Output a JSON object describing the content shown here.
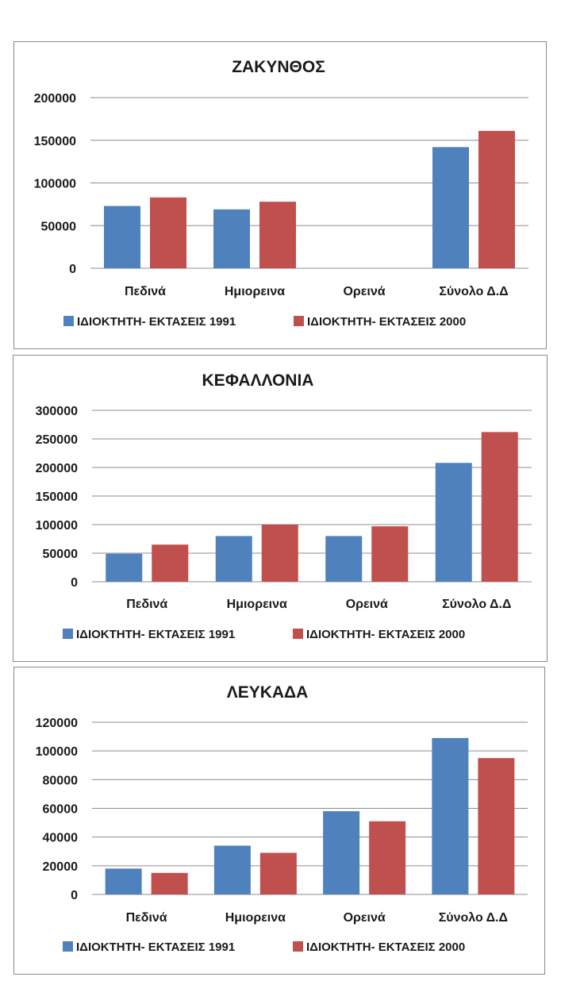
{
  "chart_data": [
    {
      "type": "bar",
      "title": "ΖΑΚΥΝΘΟΣ",
      "categories": [
        "Πεδινά",
        "Ημιορεινα",
        "Ορεινά",
        "Σύνολο Δ.Δ"
      ],
      "series": [
        {
          "name": "ΙΔΙΟΚΤΗΤΗ- ΕΚΤΑΣΕΙΣ 1991",
          "color": "#4f81bd",
          "values": [
            73000,
            69000,
            0,
            142000
          ]
        },
        {
          "name": "ΙΔΙΟΚΤΗΤΗ- ΕΚΤΑΣΕΙΣ 2000",
          "color": "#c0504d",
          "values": [
            83000,
            78000,
            0,
            161000
          ]
        }
      ],
      "yticks": [
        "0",
        "50000",
        "100000",
        "150000",
        "200000"
      ],
      "ylim": [
        0,
        200000
      ],
      "grid": true,
      "legend": "bottom"
    },
    {
      "type": "bar",
      "title": "ΚΕΦΑΛΛΟΝΙΑ",
      "categories": [
        "Πεδινά",
        "Ημιορεινα",
        "Ορεινά",
        "Σύνολο Δ.Δ"
      ],
      "series": [
        {
          "name": "ΙΔΙΟΚΤΗΤΗ- ΕΚΤΑΣΕΙΣ 1991",
          "color": "#4f81bd",
          "values": [
            49000,
            80000,
            80000,
            208000
          ]
        },
        {
          "name": "ΙΔΙΟΚΤΗΤΗ- ΕΚΤΑΣΕΙΣ 2000",
          "color": "#c0504d",
          "values": [
            65000,
            100000,
            97000,
            262000
          ]
        }
      ],
      "yticks": [
        "0",
        "50000",
        "100000",
        "150000",
        "200000",
        "250000",
        "300000"
      ],
      "ylim": [
        0,
        300000
      ],
      "grid": true,
      "legend": "bottom"
    },
    {
      "type": "bar",
      "title": "ΛΕΥΚΑΔΑ",
      "categories": [
        "Πεδινά",
        "Ημιορεινα",
        "Ορεινά",
        "Σύνολο Δ.Δ"
      ],
      "series": [
        {
          "name": "ΙΔΙΟΚΤΗΤΗ- ΕΚΤΑΣΕΙΣ 1991",
          "color": "#4f81bd",
          "values": [
            18000,
            34000,
            58000,
            109000
          ]
        },
        {
          "name": "ΙΔΙΟΚΤΗΤΗ- ΕΚΤΑΣΕΙΣ 2000",
          "color": "#c0504d",
          "values": [
            15000,
            29000,
            51000,
            95000
          ]
        }
      ],
      "yticks": [
        "0",
        "20000",
        "40000",
        "60000",
        "80000",
        "100000",
        "120000"
      ],
      "ylim": [
        0,
        120000
      ],
      "grid": true,
      "legend": "bottom"
    }
  ]
}
